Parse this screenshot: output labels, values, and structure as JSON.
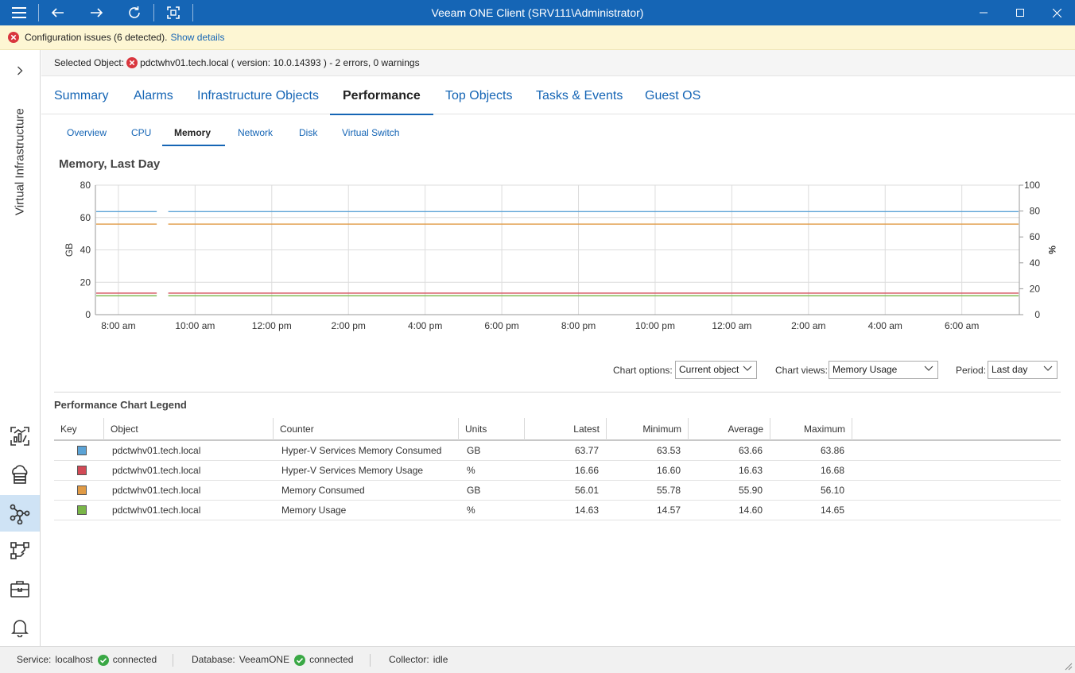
{
  "app": {
    "title": "Veeam ONE Client (SRV111\\Administrator)"
  },
  "banner": {
    "message": "Configuration issues (6 detected).",
    "link": "Show details"
  },
  "sidebar": {
    "section_label": "Virtual Infrastructure",
    "icons": [
      "dashboard-icon",
      "cloud-icon",
      "infrastructure-icon",
      "data-protection-icon",
      "business-view-icon",
      "alarms-icon"
    ],
    "active_index": 2
  },
  "selected_object": {
    "label": "Selected Object:",
    "text": "pdctwhv01.tech.local ( version: 10.0.14393 ) - 2 errors, 0 warnings"
  },
  "main_tabs": [
    {
      "label": "Summary"
    },
    {
      "label": "Alarms"
    },
    {
      "label": "Infrastructure Objects"
    },
    {
      "label": "Performance"
    },
    {
      "label": "Top Objects"
    },
    {
      "label": "Tasks & Events"
    },
    {
      "label": "Guest OS"
    }
  ],
  "main_tab_active": 3,
  "sub_tabs": [
    {
      "label": "Overview"
    },
    {
      "label": "CPU"
    },
    {
      "label": "Memory"
    },
    {
      "label": "Network"
    },
    {
      "label": "Disk"
    },
    {
      "label": "Virtual Switch"
    }
  ],
  "sub_tab_active": 2,
  "chart_title": "Memory, Last Day",
  "chart_data": {
    "type": "line",
    "title": "Memory, Last Day",
    "ylabel": "GB",
    "y2label": "%",
    "ylim": [
      0,
      80
    ],
    "y2lim": [
      0,
      100
    ],
    "yticks": [
      0,
      20,
      40,
      60,
      80
    ],
    "y2ticks": [
      0,
      20,
      40,
      60,
      80,
      100
    ],
    "xlabels": [
      "8:00 am",
      "10:00 am",
      "12:00 pm",
      "2:00 pm",
      "4:00 pm",
      "6:00 pm",
      "8:00 pm",
      "10:00 pm",
      "12:00 am",
      "2:00 am",
      "4:00 am",
      "6:00 am"
    ],
    "xlim_hours": [
      7.4,
      31.5
    ],
    "gap_hours": [
      9.0,
      9.3
    ],
    "grid": true,
    "series": [
      {
        "name": "Hyper-V Services Memory Consumed",
        "axis": "left",
        "color": "#5ba3d6",
        "value": 63.66
      },
      {
        "name": "Hyper-V Services Memory Usage",
        "axis": "right",
        "color": "#d24a56",
        "value": 16.63
      },
      {
        "name": "Memory Consumed",
        "axis": "left",
        "color": "#e09a45",
        "value": 55.9
      },
      {
        "name": "Memory Usage",
        "axis": "right",
        "color": "#7ab648",
        "value": 14.6
      }
    ]
  },
  "options": {
    "chart_options_label": "Chart options:",
    "chart_options_value": "Current object",
    "chart_views_label": "Chart views:",
    "chart_views_value": "Memory Usage",
    "period_label": "Period:",
    "period_value": "Last day"
  },
  "legend": {
    "title": "Performance Chart Legend",
    "columns": [
      "Key",
      "Object",
      "Counter",
      "Units",
      "Latest",
      "Minimum",
      "Average",
      "Maximum"
    ],
    "rows": [
      {
        "color": "#5ba3d6",
        "object": "pdctwhv01.tech.local",
        "counter": "Hyper-V Services Memory Consumed",
        "units": "GB",
        "latest": "63.77",
        "minimum": "63.53",
        "average": "63.66",
        "maximum": "63.86"
      },
      {
        "color": "#d24a56",
        "object": "pdctwhv01.tech.local",
        "counter": "Hyper-V Services Memory Usage",
        "units": "%",
        "latest": "16.66",
        "minimum": "16.60",
        "average": "16.63",
        "maximum": "16.68"
      },
      {
        "color": "#e09a45",
        "object": "pdctwhv01.tech.local",
        "counter": "Memory Consumed",
        "units": "GB",
        "latest": "56.01",
        "minimum": "55.78",
        "average": "55.90",
        "maximum": "56.10"
      },
      {
        "color": "#7ab648",
        "object": "pdctwhv01.tech.local",
        "counter": "Memory Usage",
        "units": "%",
        "latest": "14.63",
        "minimum": "14.57",
        "average": "14.60",
        "maximum": "14.65"
      }
    ]
  },
  "status": {
    "service_label": "Service:",
    "service_host": "localhost",
    "service_state": "connected",
    "database_label": "Database:",
    "database_name": "VeeamONE",
    "database_state": "connected",
    "collector_label": "Collector:",
    "collector_state": "idle"
  }
}
